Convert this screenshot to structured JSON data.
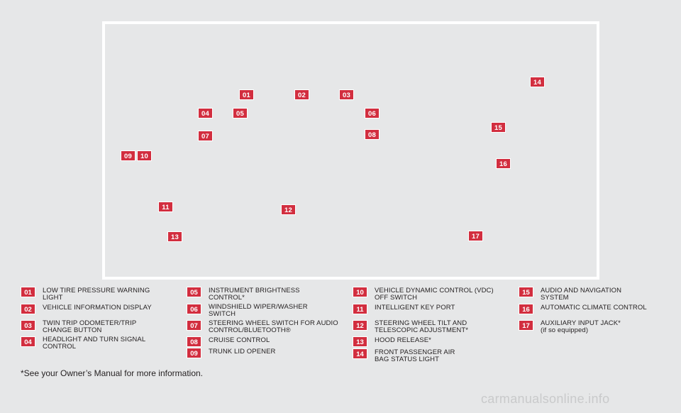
{
  "diagram_badges": {
    "b01": "01",
    "b02": "02",
    "b03": "03",
    "b04": "04",
    "b05": "05",
    "b06": "06",
    "b07": "07",
    "b08": "08",
    "b09": "09",
    "b10": "10",
    "b11": "11",
    "b12": "12",
    "b13": "13",
    "b14": "14",
    "b15": "15",
    "b16": "16",
    "b17": "17"
  },
  "legend": [
    {
      "num": "01",
      "text": "LOW TIRE PRESSURE WARNING\nLIGHT"
    },
    {
      "num": "02",
      "text": "VEHICLE INFORMATION DISPLAY"
    },
    {
      "num": "03",
      "text": "TWIN TRIP ODOMETER/TRIP\nCHANGE BUTTON"
    },
    {
      "num": "04",
      "text": "HEADLIGHT AND TURN SIGNAL\nCONTROL"
    },
    {
      "num": "05",
      "text": "INSTRUMENT BRIGHTNESS\nCONTROL*"
    },
    {
      "num": "06",
      "text": "WINDSHIELD WIPER/WASHER\nSWITCH"
    },
    {
      "num": "07",
      "text": "STEERING WHEEL SWITCH FOR AUDIO\nCONTROL/BLUETOOTH®"
    },
    {
      "num": "08",
      "text": "CRUISE CONTROL"
    },
    {
      "num": "09",
      "text": "TRUNK LID OPENER"
    },
    {
      "num": "10",
      "text": "VEHICLE DYNAMIC CONTROL (VDC)\nOFF SWITCH"
    },
    {
      "num": "11",
      "text": "INTELLIGENT KEY PORT"
    },
    {
      "num": "12",
      "text": "STEERING WHEEL TILT AND\nTELESCOPIC ADJUSTMENT*"
    },
    {
      "num": "13",
      "text": "HOOD RELEASE*"
    },
    {
      "num": "14",
      "text": "FRONT PASSENGER AIR\nBAG STATUS LIGHT"
    },
    {
      "num": "15",
      "text": "AUDIO AND NAVIGATION\nSYSTEM"
    },
    {
      "num": "16",
      "text": "AUTOMATIC CLIMATE CONTROL"
    },
    {
      "num": "17",
      "text": "AUXILIARY INPUT JACK*\n(if so equipped)"
    }
  ],
  "footnote": "*See your Owner’s Manual for more information.",
  "watermark": "carmanualsonline.info",
  "colors": {
    "badge": "#d22e3f",
    "background": "#e6e7e8",
    "frame": "#ffffff"
  }
}
